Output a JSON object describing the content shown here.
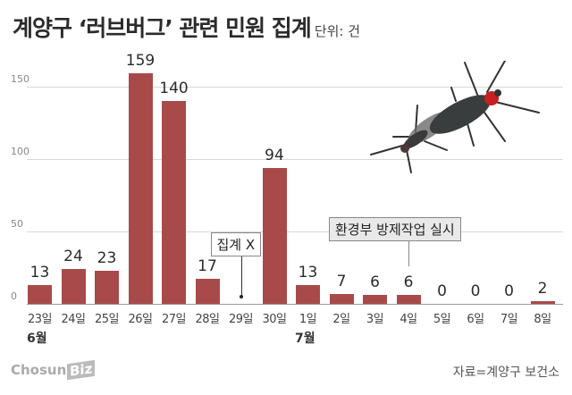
{
  "header": {
    "title": "계양구 ‘러브버그’ 관련 민원 집계",
    "unit": "단위: 건"
  },
  "chart_data": {
    "type": "bar",
    "title": "계양구 ‘러브버그’ 관련 민원 집계",
    "subtitle": "단위: 건",
    "xlabel": "",
    "ylabel": "",
    "ylim": [
      0,
      165
    ],
    "yticks": [
      "0",
      "50",
      "100",
      "150"
    ],
    "grid": true,
    "categories": [
      "23일",
      "24일",
      "25일",
      "26일",
      "27일",
      "28일",
      "29일",
      "30일",
      "1일",
      "2일",
      "3일",
      "4일",
      "5일",
      "6일",
      "7일",
      "8일"
    ],
    "month_labels": [
      {
        "index": 0,
        "label": "6월"
      },
      {
        "index": 8,
        "label": "7월"
      }
    ],
    "values": [
      13,
      24,
      23,
      159,
      140,
      17,
      null,
      94,
      13,
      7,
      6,
      6,
      0,
      0,
      0,
      2
    ],
    "value_labels": [
      "13",
      "24",
      "23",
      "159",
      "140",
      "17",
      "",
      "94",
      "13",
      "7",
      "6",
      "6",
      "0",
      "0",
      "0",
      "2"
    ],
    "bar_color": "#a94a4a",
    "annotations": [
      {
        "index": 6,
        "text": "집계 X"
      },
      {
        "index": 11,
        "text": "환경부 방제작업 실시"
      }
    ]
  },
  "footer": {
    "logo_text": "Chosun",
    "logo_biz": "Biz",
    "source": "자료=계양구 보건소"
  }
}
